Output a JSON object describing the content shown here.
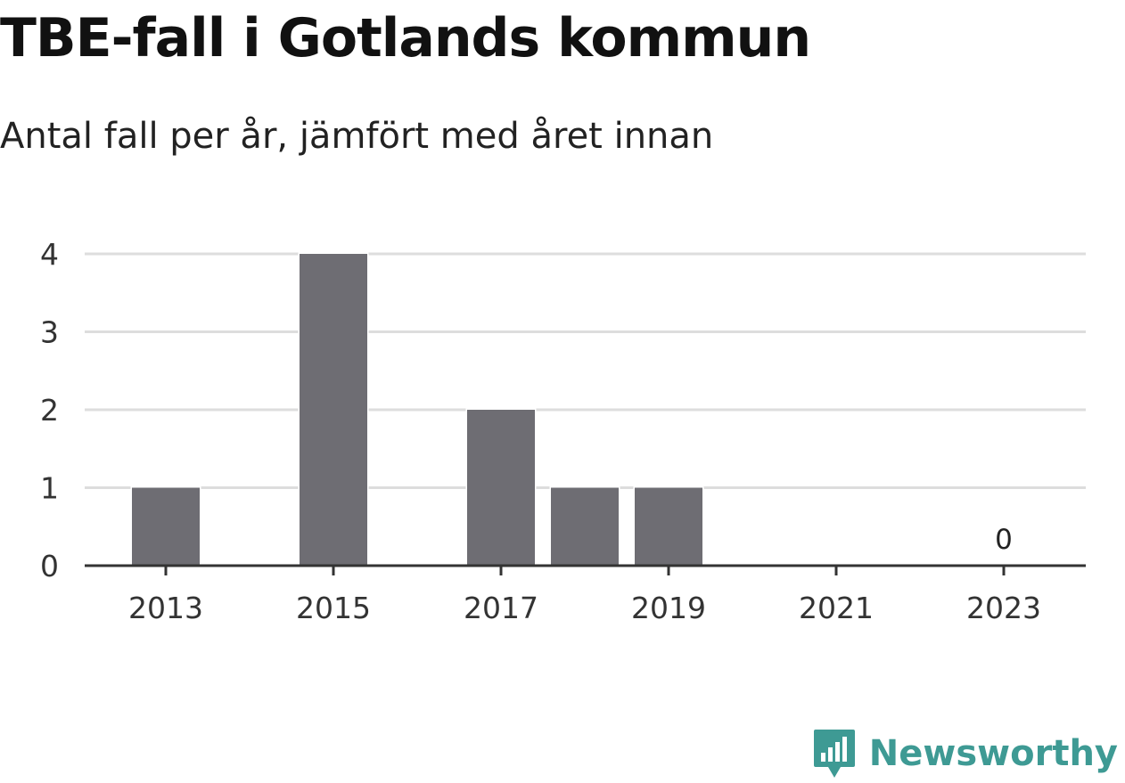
{
  "header": {
    "title": "TBE-fall i Gotlands kommun",
    "subtitle": "Antal fall per år, jämfört med året innan"
  },
  "brand": {
    "name": "Newsworthy",
    "logo_icon": "newsworthy-logo-icon",
    "color": "#3e9a94"
  },
  "chart_data": {
    "type": "bar",
    "categories": [
      "2013",
      "2014",
      "2015",
      "2016",
      "2017",
      "2018",
      "2019",
      "2020",
      "2021",
      "2022",
      "2023"
    ],
    "values": [
      1,
      0,
      4,
      0,
      2,
      1,
      1,
      0,
      0,
      0,
      0
    ],
    "x_tick_labels": [
      "2013",
      "2015",
      "2017",
      "2019",
      "2021",
      "2023"
    ],
    "y_ticks": [
      0,
      1,
      2,
      3,
      4
    ],
    "ylim": [
      0,
      4
    ],
    "annotations": [
      {
        "category": "2023",
        "text": "0"
      }
    ],
    "bar_color": "#6e6d73",
    "grid": true,
    "xlabel": "",
    "ylabel": ""
  }
}
